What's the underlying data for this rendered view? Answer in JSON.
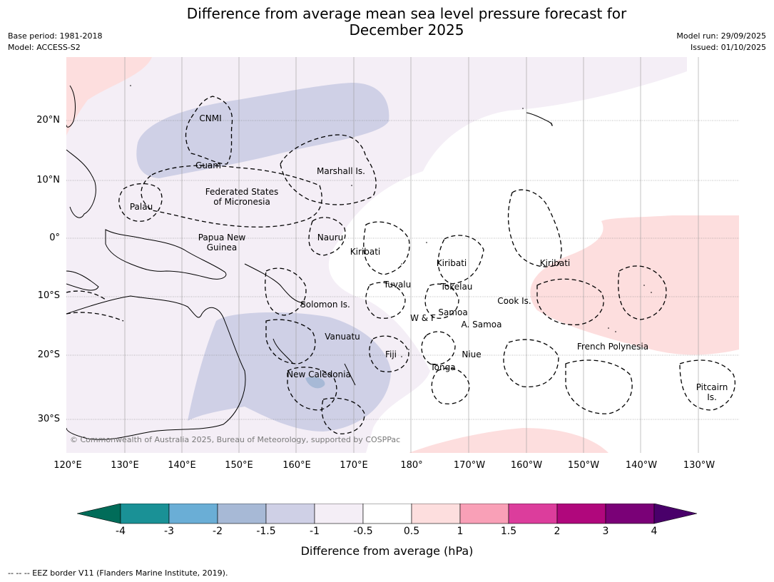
{
  "title": {
    "line1": "Difference from average mean sea level pressure forecast for",
    "line2": "December 2025"
  },
  "meta_left": {
    "base_period": "Base period: 1981-2018",
    "model": "Model: ACCESS-S2"
  },
  "meta_right": {
    "model_run": "Model run: 29/09/2025",
    "issued": "Issued: 01/10/2025"
  },
  "copyright": "© Commonwealth of Australia 2025, Bureau of Meteorology, supported by COSPPac",
  "lat_labels": [
    "20°N",
    "10°N",
    "0°",
    "10°S",
    "20°S",
    "30°S"
  ],
  "lon_labels": [
    "120°E",
    "130°E",
    "140°E",
    "150°E",
    "160°E",
    "170°E",
    "180°",
    "170°W",
    "160°W",
    "150°W",
    "140°W",
    "130°W"
  ],
  "regions": [
    {
      "name": "CNMI"
    },
    {
      "name": "Guam"
    },
    {
      "name": "Marshall Is."
    },
    {
      "name": "Federated States\nof Micronesia"
    },
    {
      "name": "Palau"
    },
    {
      "name": "Papua New\nGuinea"
    },
    {
      "name": "Nauru"
    },
    {
      "name": "Kiribati"
    },
    {
      "name": "Kiribati"
    },
    {
      "name": "Kiribati"
    },
    {
      "name": "Tuvalu"
    },
    {
      "name": "Tokelau"
    },
    {
      "name": "Cook Is."
    },
    {
      "name": "Solomon Is."
    },
    {
      "name": "Samoa"
    },
    {
      "name": "W & F"
    },
    {
      "name": "A. Samoa"
    },
    {
      "name": "Vanuatu"
    },
    {
      "name": "Fiji"
    },
    {
      "name": "Niue"
    },
    {
      "name": "Tonga"
    },
    {
      "name": "New Caledonia"
    },
    {
      "name": "French Polynesia"
    },
    {
      "name": "Pitcairn\nIs."
    }
  ],
  "colorbar": {
    "label": "Difference from average (hPa)",
    "ticks": [
      "-4",
      "-3",
      "-2",
      "-1.5",
      "-1",
      "-0.5",
      "0.5",
      "1",
      "1.5",
      "2",
      "3",
      "4"
    ],
    "colors": [
      "#1a9196",
      "#6aaed6",
      "#a7b9d6",
      "#cfd0e6",
      "#f4eef6",
      "#ffffff",
      "#fddede",
      "#f9a0b7",
      "#dc3d9c",
      "#b0077c",
      "#7a0177"
    ],
    "under_color": "#016c59",
    "over_color": "#49006a"
  },
  "eez_note": "--  --  -- EEZ border V11 (Flanders Marine Institute, 2019)."
}
